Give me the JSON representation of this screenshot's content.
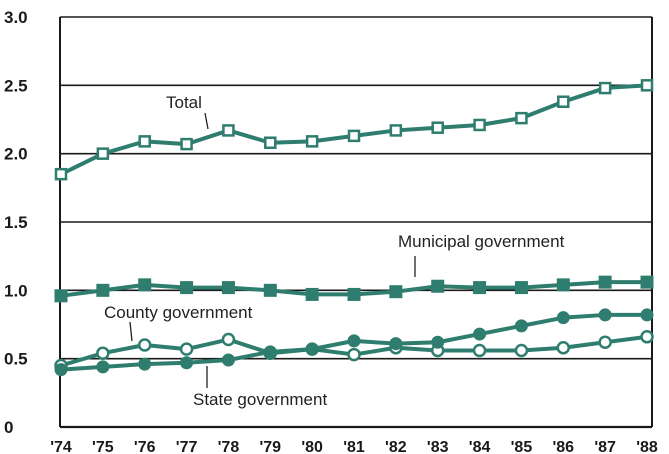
{
  "chart_data": {
    "type": "line",
    "title": "",
    "xlabel": "",
    "ylabel": "",
    "x": [
      "'74",
      "'75",
      "'76",
      "'77",
      "'78",
      "'79",
      "'80",
      "'81",
      "'82",
      "'83",
      "'84",
      "'85",
      "'86",
      "'87",
      "'88"
    ],
    "y_ticks": [
      "0",
      "0.5",
      "1.0",
      "1.5",
      "2.0",
      "2.5",
      "3.0"
    ],
    "ylim": [
      0,
      3.0
    ],
    "grid": "horizontal",
    "colors": {
      "line": "#2e7d6e",
      "grid": "#1a1a1a",
      "marker_fill": "#ffffff"
    },
    "series": [
      {
        "name": "Total",
        "marker": "open-square",
        "values": [
          1.85,
          2.0,
          2.09,
          2.07,
          2.17,
          2.08,
          2.09,
          2.13,
          2.17,
          2.19,
          2.21,
          2.26,
          2.38,
          2.48,
          2.5
        ]
      },
      {
        "name": "Municipal government",
        "marker": "filled-square",
        "values": [
          0.96,
          1.0,
          1.04,
          1.02,
          1.02,
          1.0,
          0.97,
          0.97,
          0.99,
          1.03,
          1.02,
          1.02,
          1.04,
          1.06,
          1.06
        ]
      },
      {
        "name": "County government",
        "marker": "open-circle",
        "values": [
          0.45,
          0.54,
          0.6,
          0.57,
          0.64,
          0.54,
          0.57,
          0.53,
          0.58,
          0.56,
          0.56,
          0.56,
          0.58,
          0.62,
          0.66
        ]
      },
      {
        "name": "State government",
        "marker": "filled-circle",
        "values": [
          0.42,
          0.44,
          0.46,
          0.47,
          0.49,
          0.55,
          0.57,
          0.63,
          0.61,
          0.62,
          0.68,
          0.74,
          0.8,
          0.82,
          0.82
        ]
      }
    ]
  }
}
